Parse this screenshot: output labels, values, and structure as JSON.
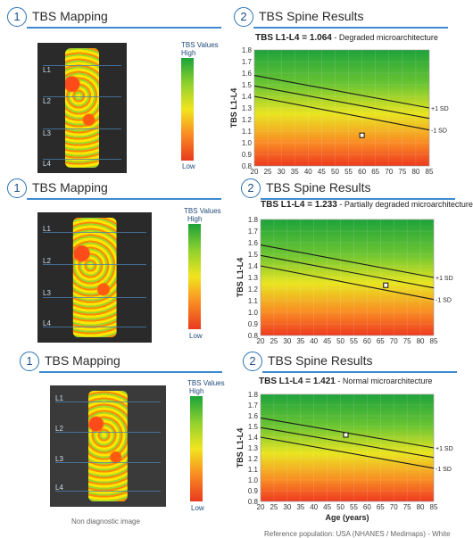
{
  "panels": [
    {
      "mapping": {
        "number": "1",
        "title": "TBS Mapping",
        "vertebrae": [
          "L1",
          "L2",
          "L3",
          "L4"
        ],
        "scale_title": "TBS Values",
        "scale_high": "High",
        "scale_low": "Low",
        "caption": ""
      },
      "results": {
        "number": "2",
        "title": "TBS Spine Results",
        "value_text": "TBS L1-L4 = 1.064",
        "interpretation": " - Degraded microarchitecture"
      }
    },
    {
      "mapping": {
        "number": "1",
        "title": "TBS Mapping",
        "vertebrae": [
          "L1",
          "L2",
          "L3",
          "L4"
        ],
        "scale_title": "TBS Values",
        "scale_high": "High",
        "scale_low": "Low",
        "caption": ""
      },
      "results": {
        "number": "2",
        "title": "TBS Spine Results",
        "value_text": "TBS L1-L4 = 1.233",
        "interpretation": " - Partially degraded microarchitecture"
      }
    },
    {
      "mapping": {
        "number": "1",
        "title": "TBS Mapping",
        "vertebrae": [
          "L1",
          "L2",
          "L3",
          "L4"
        ],
        "scale_title": "TBS Values",
        "scale_high": "High",
        "scale_low": "Low",
        "caption": "Non diagnostic image"
      },
      "results": {
        "number": "2",
        "title": "TBS Spine Results",
        "value_text": "TBS L1-L4 = 1.421",
        "interpretation": " - Normal microarchitecture",
        "reference_note": "Reference population: USA (NHANES / Medimaps) - White"
      }
    }
  ],
  "chart_data": [
    {
      "type": "line",
      "ylabel": "TBS L1-L4",
      "xlabel": "",
      "xlim": [
        20,
        85
      ],
      "ylim": [
        0.8,
        1.8
      ],
      "x_ticks": [
        20,
        25,
        30,
        35,
        40,
        45,
        50,
        55,
        60,
        65,
        70,
        75,
        80,
        85
      ],
      "y_ticks": [
        0.8,
        0.9,
        1.0,
        1.1,
        1.2,
        1.3,
        1.4,
        1.5,
        1.6,
        1.7,
        1.8
      ],
      "x_ticklabels": [
        "20",
        "25",
        "30",
        "35",
        "40",
        "45",
        "50",
        "55",
        "60",
        "65",
        "70",
        "75",
        "80",
        "85"
      ],
      "y_ticklabels": [
        "0.8",
        "0.9",
        "1.0",
        "1.1",
        "1.2",
        "1.3",
        "1.4",
        "1.5",
        "1.6",
        "1.7",
        "1.8"
      ],
      "background": "gradient green (high) to red (low)",
      "series": [
        {
          "name": "+1 SD",
          "x": [
            20,
            85
          ],
          "y": [
            1.58,
            1.3
          ]
        },
        {
          "name": "",
          "x": [
            20,
            85
          ],
          "y": [
            1.49,
            1.21
          ]
        },
        {
          "name": "-1 SD",
          "x": [
            20,
            85
          ],
          "y": [
            1.4,
            1.11
          ]
        }
      ],
      "patient": {
        "age": 60,
        "tbs": 1.064
      }
    },
    {
      "type": "line",
      "ylabel": "TBS L1-L4",
      "xlabel": "",
      "xlim": [
        20,
        85
      ],
      "ylim": [
        0.8,
        1.8
      ],
      "x_ticks": [
        20,
        25,
        30,
        35,
        40,
        45,
        50,
        55,
        60,
        65,
        70,
        75,
        80,
        85
      ],
      "y_ticks": [
        0.8,
        0.9,
        1.0,
        1.1,
        1.2,
        1.3,
        1.4,
        1.5,
        1.6,
        1.7,
        1.8
      ],
      "x_ticklabels": [
        "20",
        "25",
        "30",
        "35",
        "40",
        "45",
        "50",
        "55",
        "60",
        "65",
        "70",
        "75",
        "80",
        "85"
      ],
      "y_ticklabels": [
        "0.8",
        "0.9",
        "1.0",
        "1.1",
        "1.2",
        "1.3",
        "1.4",
        "1.5",
        "1.6",
        "1.7",
        "1.8"
      ],
      "background": "gradient green (high) to red (low)",
      "series": [
        {
          "name": "+1 SD",
          "x": [
            20,
            85
          ],
          "y": [
            1.58,
            1.3
          ]
        },
        {
          "name": "",
          "x": [
            20,
            85
          ],
          "y": [
            1.49,
            1.21
          ]
        },
        {
          "name": "-1 SD",
          "x": [
            20,
            85
          ],
          "y": [
            1.4,
            1.11
          ]
        }
      ],
      "patient": {
        "age": 67,
        "tbs": 1.233
      }
    },
    {
      "type": "line",
      "ylabel": "TBS L1-L4",
      "xlabel": "Age (years)",
      "xlim": [
        20,
        85
      ],
      "ylim": [
        0.8,
        1.8
      ],
      "x_ticks": [
        20,
        25,
        30,
        35,
        40,
        45,
        50,
        55,
        60,
        65,
        70,
        75,
        80,
        85
      ],
      "y_ticks": [
        0.8,
        0.9,
        1.0,
        1.1,
        1.2,
        1.3,
        1.4,
        1.5,
        1.6,
        1.7,
        1.8
      ],
      "x_ticklabels": [
        "20",
        "25",
        "30",
        "35",
        "40",
        "45",
        "50",
        "55",
        "60",
        "65",
        "70",
        "75",
        "80",
        "85"
      ],
      "y_ticklabels": [
        "0.8",
        "0.9",
        "1.0",
        "1.1",
        "1.2",
        "1.3",
        "1.4",
        "1.5",
        "1.6",
        "1.7",
        "1.8"
      ],
      "background": "gradient green (high) to red (low)",
      "series": [
        {
          "name": "+1 SD",
          "x": [
            20,
            85
          ],
          "y": [
            1.58,
            1.3
          ]
        },
        {
          "name": "",
          "x": [
            20,
            85
          ],
          "y": [
            1.49,
            1.21
          ]
        },
        {
          "name": "-1 SD",
          "x": [
            20,
            85
          ],
          "y": [
            1.4,
            1.11
          ]
        }
      ],
      "patient": {
        "age": 52,
        "tbs": 1.421
      }
    }
  ]
}
